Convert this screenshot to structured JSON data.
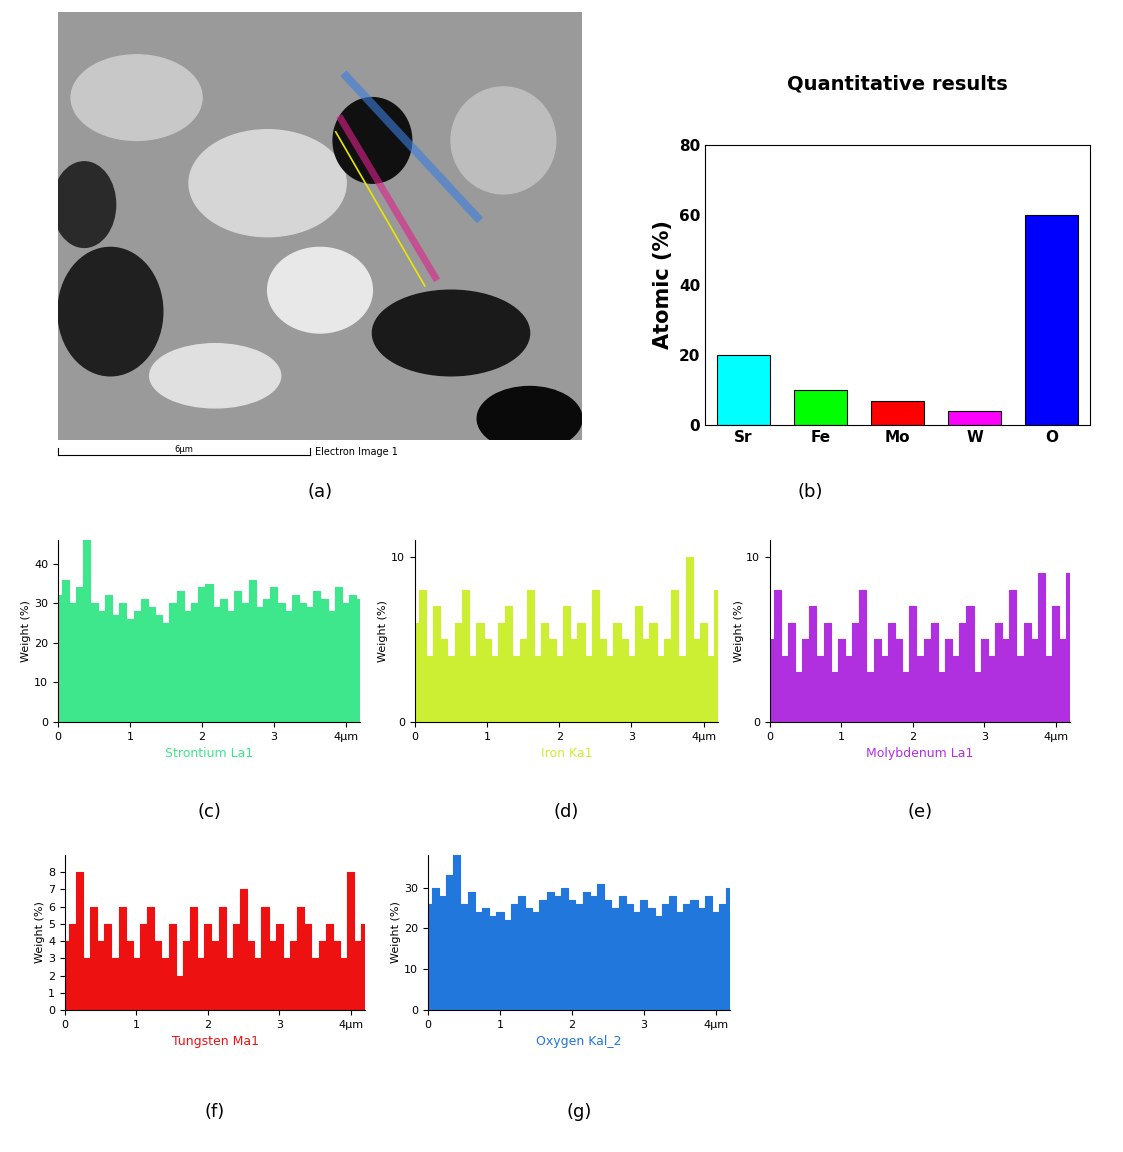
{
  "chart_data": [
    {
      "type": "image",
      "panel_label": "(a)",
      "scale_bar": "6µm",
      "caption": "Electron Image 1"
    },
    {
      "type": "bar",
      "panel_label": "(b)",
      "title": "Quantitative results",
      "y_label": "Atomic (%)",
      "categories": [
        "Sr",
        "Fe",
        "Mo",
        "W",
        "O"
      ],
      "values": [
        20,
        10,
        7,
        4,
        60
      ],
      "colors": [
        "#00ffff",
        "#00ff00",
        "#ff0000",
        "#ff00ff",
        "#0000ff"
      ],
      "ylim": [
        0,
        80
      ],
      "yticks": [
        0,
        20,
        40,
        60,
        80
      ]
    },
    {
      "type": "line",
      "panel_label": "(c)",
      "x_label": "Strontium La1",
      "y_label": "Weight (%)",
      "color": "#3ee68c",
      "x": [
        0,
        0.1,
        0.2,
        0.3,
        0.4,
        0.5,
        0.6,
        0.7,
        0.8,
        0.9,
        1,
        1.1,
        1.2,
        1.3,
        1.4,
        1.5,
        1.6,
        1.7,
        1.8,
        1.9,
        2,
        2.1,
        2.2,
        2.3,
        2.4,
        2.5,
        2.6,
        2.7,
        2.8,
        2.9,
        3,
        3.1,
        3.2,
        3.3,
        3.4,
        3.5,
        3.6,
        3.7,
        3.8,
        3.9,
        4,
        4.1,
        4.2
      ],
      "values": [
        32,
        36,
        30,
        34,
        46,
        30,
        28,
        32,
        27,
        30,
        26,
        28,
        31,
        29,
        27,
        25,
        30,
        33,
        28,
        30,
        34,
        35,
        29,
        31,
        28,
        33,
        30,
        36,
        29,
        31,
        34,
        30,
        28,
        32,
        30,
        29,
        33,
        31,
        28,
        34,
        30,
        32,
        31
      ],
      "xlim": [
        0,
        4.2
      ],
      "xticks": [
        0,
        1,
        2,
        3,
        {
          "value": 4,
          "label": "4µm"
        }
      ],
      "ylim": [
        0,
        46
      ],
      "yticks": [
        0,
        10,
        20,
        30,
        40
      ]
    },
    {
      "type": "line",
      "panel_label": "(d)",
      "x_label": "Iron Ka1",
      "y_label": "Weight (%)",
      "color": "#ccee33",
      "x": [
        0,
        0.1,
        0.2,
        0.3,
        0.4,
        0.5,
        0.6,
        0.7,
        0.8,
        0.9,
        1,
        1.1,
        1.2,
        1.3,
        1.4,
        1.5,
        1.6,
        1.7,
        1.8,
        1.9,
        2,
        2.1,
        2.2,
        2.3,
        2.4,
        2.5,
        2.6,
        2.7,
        2.8,
        2.9,
        3,
        3.1,
        3.2,
        3.3,
        3.4,
        3.5,
        3.6,
        3.7,
        3.8,
        3.9,
        4,
        4.1,
        4.2
      ],
      "values": [
        6,
        8,
        4,
        7,
        5,
        4,
        6,
        8,
        4,
        6,
        5,
        4,
        6,
        7,
        4,
        5,
        8,
        4,
        6,
        5,
        4,
        7,
        5,
        6,
        4,
        8,
        5,
        4,
        6,
        5,
        4,
        7,
        5,
        6,
        4,
        5,
        8,
        4,
        10,
        5,
        6,
        4,
        8
      ],
      "xlim": [
        0,
        4.2
      ],
      "xticks": [
        0,
        1,
        2,
        3,
        {
          "value": 4,
          "label": "4µm"
        }
      ],
      "ylim": [
        0,
        11
      ],
      "yticks": [
        0,
        10
      ]
    },
    {
      "type": "line",
      "panel_label": "(e)",
      "x_label": "Molybdenum La1",
      "y_label": "Weight (%)",
      "color": "#b030e0",
      "x": [
        0,
        0.1,
        0.2,
        0.3,
        0.4,
        0.5,
        0.6,
        0.7,
        0.8,
        0.9,
        1,
        1.1,
        1.2,
        1.3,
        1.4,
        1.5,
        1.6,
        1.7,
        1.8,
        1.9,
        2,
        2.1,
        2.2,
        2.3,
        2.4,
        2.5,
        2.6,
        2.7,
        2.8,
        2.9,
        3,
        3.1,
        3.2,
        3.3,
        3.4,
        3.5,
        3.6,
        3.7,
        3.8,
        3.9,
        4,
        4.1,
        4.2
      ],
      "values": [
        5,
        8,
        4,
        6,
        3,
        5,
        7,
        4,
        6,
        3,
        5,
        4,
        6,
        8,
        3,
        5,
        4,
        6,
        5,
        3,
        7,
        4,
        5,
        6,
        3,
        5,
        4,
        6,
        7,
        3,
        5,
        4,
        6,
        5,
        8,
        4,
        6,
        5,
        9,
        4,
        7,
        5,
        9
      ],
      "xlim": [
        0,
        4.2
      ],
      "xticks": [
        0,
        1,
        2,
        3,
        {
          "value": 4,
          "label": "4µm"
        }
      ],
      "ylim": [
        0,
        11
      ],
      "yticks": [
        0,
        10
      ]
    },
    {
      "type": "line",
      "panel_label": "(f)",
      "x_label": "Tungsten Ma1",
      "y_label": "Weight (%)",
      "color": "#ee1111",
      "x": [
        0,
        0.1,
        0.2,
        0.3,
        0.4,
        0.5,
        0.6,
        0.7,
        0.8,
        0.9,
        1,
        1.1,
        1.2,
        1.3,
        1.4,
        1.5,
        1.6,
        1.7,
        1.8,
        1.9,
        2,
        2.1,
        2.2,
        2.3,
        2.4,
        2.5,
        2.6,
        2.7,
        2.8,
        2.9,
        3,
        3.1,
        3.2,
        3.3,
        3.4,
        3.5,
        3.6,
        3.7,
        3.8,
        3.9,
        4,
        4.1,
        4.2
      ],
      "values": [
        4,
        5,
        8,
        3,
        6,
        4,
        5,
        3,
        6,
        4,
        3,
        5,
        6,
        4,
        3,
        5,
        2,
        4,
        6,
        3,
        5,
        4,
        6,
        3,
        5,
        7,
        4,
        3,
        6,
        4,
        5,
        3,
        4,
        6,
        5,
        3,
        4,
        5,
        4,
        3,
        8,
        4,
        5
      ],
      "xlim": [
        0,
        4.2
      ],
      "xticks": [
        0,
        1,
        2,
        3,
        {
          "value": 4,
          "label": "4µm"
        }
      ],
      "ylim": [
        0,
        9
      ],
      "yticks": [
        0,
        1,
        2,
        3,
        4,
        5,
        6,
        7,
        8
      ]
    },
    {
      "type": "line",
      "panel_label": "(g)",
      "x_label": "Oxygen Kal_2",
      "y_label": "Weight (%)",
      "color": "#2277dd",
      "x": [
        0,
        0.1,
        0.2,
        0.3,
        0.4,
        0.5,
        0.6,
        0.7,
        0.8,
        0.9,
        1,
        1.1,
        1.2,
        1.3,
        1.4,
        1.5,
        1.6,
        1.7,
        1.8,
        1.9,
        2,
        2.1,
        2.2,
        2.3,
        2.4,
        2.5,
        2.6,
        2.7,
        2.8,
        2.9,
        3,
        3.1,
        3.2,
        3.3,
        3.4,
        3.5,
        3.6,
        3.7,
        3.8,
        3.9,
        4,
        4.1,
        4.2
      ],
      "values": [
        26,
        30,
        28,
        33,
        38,
        26,
        29,
        24,
        25,
        23,
        24,
        22,
        26,
        28,
        25,
        24,
        27,
        29,
        28,
        30,
        27,
        26,
        29,
        28,
        31,
        27,
        25,
        28,
        26,
        24,
        27,
        25,
        23,
        26,
        28,
        24,
        26,
        27,
        25,
        28,
        24,
        26,
        30
      ],
      "xlim": [
        0,
        4.2
      ],
      "xticks": [
        0,
        1,
        2,
        3,
        {
          "value": 4,
          "label": "4µm"
        }
      ],
      "ylim": [
        0,
        38
      ],
      "yticks": [
        0,
        10,
        20,
        30
      ]
    }
  ]
}
